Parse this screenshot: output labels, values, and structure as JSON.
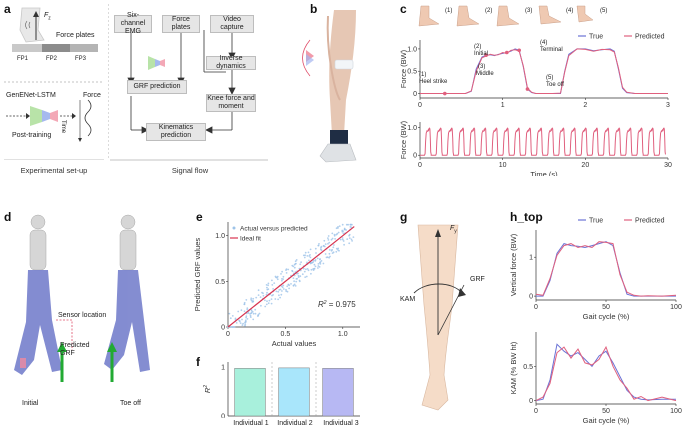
{
  "panel_a": {
    "label": "a",
    "fz_label": "F",
    "fz_sub": "z",
    "force_plates_label": "Force plates",
    "fp_labels": [
      "FP1",
      "FP2",
      "FP3"
    ],
    "model_name": "GenENet-LSTM",
    "force_label": "Force",
    "time_label": "Time",
    "post_training_label": "Post-training",
    "caption": "Experimental set-up"
  },
  "signal_flow": {
    "emg_box": "Six-channel EMG",
    "force_plates_box": "Force plates",
    "video_box": "Video capture",
    "grf_box": "GRF prediction",
    "inverse_box": "Inverse dynamics",
    "knee_box": "Knee force and moment",
    "kin_box": "Kinematics prediction",
    "caption": "Signal flow"
  },
  "panel_b": {
    "label": "b"
  },
  "panel_c": {
    "label": "c",
    "phase_numbers": [
      "(1)",
      "(2)",
      "(3)",
      "(4)",
      "(5)"
    ],
    "annotations": {
      "a1": "(1)",
      "a1b": "Heel strike",
      "a2": "(2)",
      "a2b": "Initial",
      "a3": "(3)",
      "a3b": "Middle",
      "a4": "(4)",
      "a4b": "Terminal",
      "a5": "(5)",
      "a5b": "Toe off"
    }
  },
  "panel_d": {
    "label": "d",
    "sensor_label": "Sensor location",
    "predicted_label": "Predicted GRF",
    "initial_label": "Initial",
    "toeoff_label": "Toe off"
  },
  "panel_g": {
    "label": "g",
    "fy_label": "F",
    "fy_sub": "y",
    "kam_label": "KAM",
    "grf_label": "GRF"
  },
  "chart_data": [
    {
      "id": "c_top",
      "type": "line",
      "xlabel": "",
      "ylabel": "Force (BW)",
      "xlim": [
        0,
        3
      ],
      "ylim": [
        -0.1,
        1.2
      ],
      "xticks": [
        "0",
        "1",
        "2",
        "3"
      ],
      "yticks": [
        "0",
        "0.5",
        "1.0"
      ],
      "legend": [
        "True",
        "Predicted"
      ],
      "series": [
        {
          "name": "True",
          "x": [
            0.0,
            0.2,
            0.4,
            0.55,
            0.62,
            0.68,
            0.75,
            0.8,
            0.85,
            0.9,
            0.95,
            1.0,
            1.05,
            1.1,
            1.15,
            1.2,
            1.25,
            1.3,
            1.35,
            1.4,
            1.6,
            1.7,
            1.75,
            1.8,
            1.9,
            2.0,
            2.1,
            2.2,
            2.3,
            2.35,
            2.4,
            2.45,
            2.5,
            2.6,
            3.0
          ],
          "y": [
            0.0,
            0.0,
            0.0,
            0.0,
            0.05,
            0.55,
            0.82,
            0.86,
            0.87,
            0.85,
            0.88,
            0.9,
            0.92,
            0.95,
            1.0,
            0.97,
            0.6,
            0.1,
            0.02,
            0.0,
            0.0,
            0.0,
            0.5,
            0.88,
            1.0,
            1.0,
            0.96,
            0.98,
            1.0,
            0.95,
            0.55,
            0.12,
            0.02,
            0.0,
            0.0
          ]
        },
        {
          "name": "Predicted",
          "x": [
            0.0,
            0.2,
            0.4,
            0.55,
            0.62,
            0.68,
            0.75,
            0.8,
            0.85,
            0.9,
            0.95,
            1.0,
            1.05,
            1.1,
            1.15,
            1.2,
            1.25,
            1.3,
            1.35,
            1.4,
            1.6,
            1.7,
            1.75,
            1.8,
            1.9,
            2.0,
            2.1,
            2.2,
            2.3,
            2.35,
            2.4,
            2.45,
            2.5,
            2.6,
            3.0
          ],
          "y": [
            0.0,
            0.0,
            0.0,
            0.0,
            0.06,
            0.5,
            0.8,
            0.84,
            0.88,
            0.86,
            0.87,
            0.92,
            0.9,
            0.97,
            0.98,
            0.95,
            0.62,
            0.12,
            0.03,
            0.0,
            0.0,
            0.01,
            0.48,
            0.85,
            1.0,
            0.99,
            0.95,
            0.99,
            0.98,
            0.93,
            0.58,
            0.14,
            0.03,
            0.0,
            0.0
          ]
        }
      ],
      "markers": {
        "x": [
          0.3,
          0.8,
          1.05,
          1.2,
          1.3
        ],
        "y": [
          0.0,
          0.86,
          0.92,
          0.97,
          0.1
        ]
      }
    },
    {
      "id": "c_bottom",
      "type": "line",
      "xlabel": "Time (s)",
      "ylabel": "Force (BW)",
      "xlim": [
        0,
        30
      ],
      "ylim": [
        -0.1,
        1.2
      ],
      "xticks": [
        "0",
        "10",
        "20",
        "30"
      ],
      "yticks": [
        "0",
        "1.0"
      ],
      "series": [
        {
          "name": "True/Predicted",
          "note": "repeating gait cycles, ~1.3 s period, 0 to 1 BW"
        }
      ]
    },
    {
      "id": "e",
      "type": "scatter",
      "xlabel": "Actual values",
      "ylabel": "Predicted GRF values",
      "xlim": [
        0,
        1.15
      ],
      "ylim": [
        0,
        1.15
      ],
      "xticks": [
        "0",
        "0.5",
        "1.0"
      ],
      "yticks": [
        "0",
        "0.5",
        "1.0"
      ],
      "legend": [
        "Actual versus predicted",
        "Ideal fit"
      ],
      "r2_text": "R",
      "r2_value": " = 0.975",
      "fit_line": {
        "x": [
          0,
          1.1
        ],
        "y": [
          0,
          1.1
        ]
      }
    },
    {
      "id": "f",
      "type": "bar",
      "ylabel": "R",
      "ylim": [
        0,
        1.1
      ],
      "categories": [
        "Individual 1",
        "Individual 2",
        "Individual 3"
      ],
      "values": [
        0.97,
        0.98,
        0.97
      ],
      "colors": [
        "#a8f0dc",
        "#a9e6fb",
        "#b7b8f3"
      ]
    },
    {
      "id": "h_top",
      "type": "line",
      "xlabel": "Gait cycle (%)",
      "ylabel": "Vertical force (BW)",
      "xlim": [
        0,
        100
      ],
      "ylim": [
        -0.1,
        1.7
      ],
      "xticks": [
        "0",
        "50",
        "100"
      ],
      "yticks": [
        "0",
        "1"
      ],
      "legend": [
        "True",
        "Predicted"
      ],
      "series": [
        {
          "name": "True",
          "x": [
            0,
            5,
            10,
            15,
            20,
            25,
            30,
            35,
            40,
            45,
            50,
            55,
            60,
            65,
            70,
            75,
            80,
            90,
            100
          ],
          "y": [
            0,
            0,
            0.4,
            1.1,
            1.35,
            1.3,
            1.28,
            1.25,
            1.3,
            1.35,
            1.4,
            1.3,
            0.6,
            0.05,
            0,
            0,
            0,
            0,
            0
          ]
        },
        {
          "name": "Predicted",
          "x": [
            0,
            5,
            10,
            15,
            20,
            25,
            30,
            35,
            40,
            45,
            50,
            55,
            60,
            65,
            70,
            75,
            80,
            90,
            100
          ],
          "y": [
            0.05,
            0.02,
            0.45,
            1.05,
            1.3,
            1.35,
            1.25,
            1.3,
            1.25,
            1.4,
            1.38,
            1.35,
            0.55,
            0.1,
            0.02,
            0,
            0.01,
            0,
            0.02
          ]
        }
      ]
    },
    {
      "id": "h_bottom",
      "type": "line",
      "xlabel": "Gait cycle (%)",
      "ylabel": "KAM (% BW ht)",
      "xlim": [
        0,
        100
      ],
      "ylim": [
        -0.05,
        1.0
      ],
      "xticks": [
        "0",
        "50",
        "100"
      ],
      "yticks": [
        "0",
        "0.5"
      ],
      "series": [
        {
          "name": "True",
          "x": [
            0,
            5,
            10,
            15,
            20,
            25,
            30,
            35,
            40,
            45,
            50,
            55,
            60,
            65,
            70,
            75,
            80,
            90,
            100
          ],
          "y": [
            0,
            0.02,
            0.3,
            0.82,
            0.72,
            0.65,
            0.7,
            0.6,
            0.5,
            0.65,
            0.72,
            0.55,
            0.35,
            0.15,
            0.05,
            0.02,
            0.01,
            0.02,
            0.02
          ]
        },
        {
          "name": "Predicted",
          "x": [
            0,
            5,
            10,
            15,
            20,
            25,
            30,
            35,
            40,
            45,
            50,
            55,
            60,
            65,
            70,
            75,
            80,
            90,
            100
          ],
          "y": [
            0,
            0.05,
            0.25,
            0.7,
            0.78,
            0.62,
            0.75,
            0.55,
            0.52,
            0.6,
            0.78,
            0.5,
            0.3,
            0.18,
            0.02,
            0.06,
            0.0,
            0.05,
            0.0
          ]
        }
      ]
    }
  ],
  "colors": {
    "true_line": "#6b73d6",
    "pred_line": "#e0607e",
    "scatter": "#9dc3e8",
    "fit": "#d8334f",
    "box_fill": "#e6e6e6"
  }
}
